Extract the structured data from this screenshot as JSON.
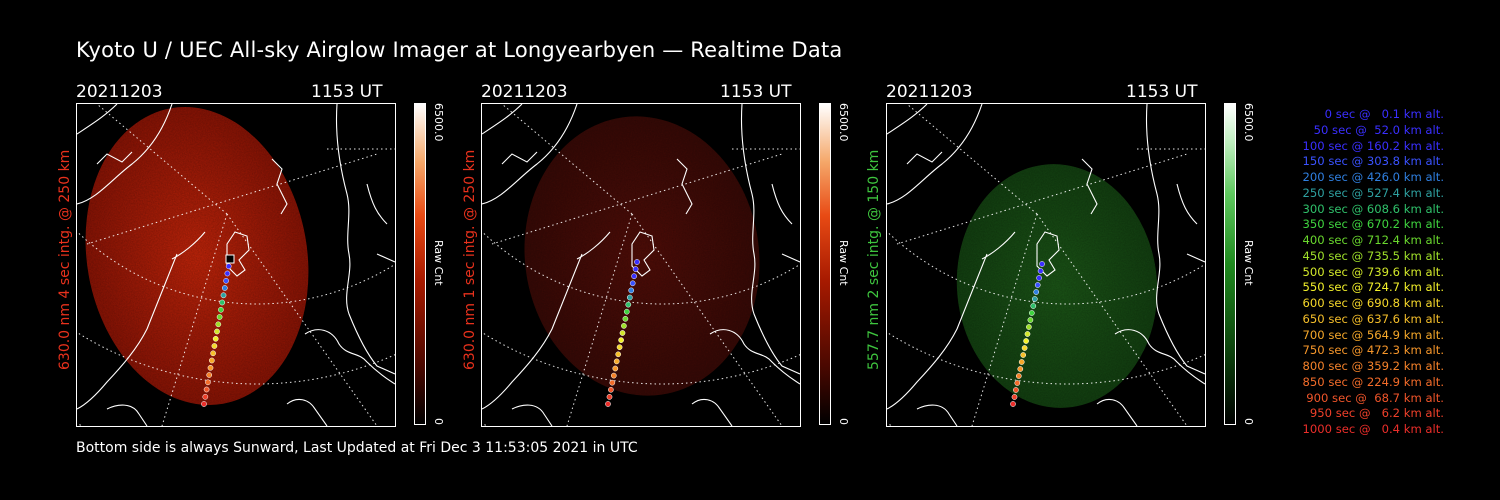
{
  "title": "Kyoto U / UEC All-sky Airglow Imager at Longyearbyen — Realtime Data",
  "footer": "Bottom side is always Sunward, Last Updated at Fri Dec  3 11:53:05 2021 in UTC",
  "panels": [
    {
      "date": "20211203",
      "time": "1153 UT",
      "label": "630.0 nm 4 sec intg. @ 250 km",
      "label_color": "#e8311c",
      "cbar_max": "6500.0",
      "cbar_min": "0",
      "cbar_unit": "Raw Cnt",
      "colormap": "red"
    },
    {
      "date": "20211203",
      "time": "1153 UT",
      "label": "630.0 nm 1 sec intg. @ 250 km",
      "label_color": "#e8311c",
      "cbar_max": "6500.0",
      "cbar_min": "0",
      "cbar_unit": "Raw Cnt",
      "colormap": "red"
    },
    {
      "date": "20211203",
      "time": "1153 UT",
      "label": "557.7 nm 2 sec intg. @ 150 km",
      "label_color": "#3ec43e",
      "cbar_max": "6500.0",
      "cbar_min": "0",
      "cbar_unit": "Raw Cnt",
      "colormap": "green"
    }
  ],
  "legend": [
    {
      "text": "0 sec @   0.1 km alt.",
      "color": "#3a2fff"
    },
    {
      "text": "50 sec @  52.0 km alt.",
      "color": "#3a2fff"
    },
    {
      "text": "100 sec @ 160.2 km alt.",
      "color": "#3a2fff"
    },
    {
      "text": "150 sec @ 303.8 km alt.",
      "color": "#3a52ff"
    },
    {
      "text": "200 sec @ 426.0 km alt.",
      "color": "#2f7fe0"
    },
    {
      "text": "250 sec @ 527.4 km alt.",
      "color": "#2ea0a0"
    },
    {
      "text": "300 sec @ 608.6 km alt.",
      "color": "#2fc06a"
    },
    {
      "text": "350 sec @ 670.2 km alt.",
      "color": "#3fd43f"
    },
    {
      "text": "400 sec @ 712.4 km alt.",
      "color": "#6ad82e"
    },
    {
      "text": "450 sec @ 735.5 km alt.",
      "color": "#9fe02a"
    },
    {
      "text": "500 sec @ 739.6 km alt.",
      "color": "#d2e82a"
    },
    {
      "text": "550 sec @ 724.7 km alt.",
      "color": "#f2f02a"
    },
    {
      "text": "600 sec @ 690.8 km alt.",
      "color": "#f6d82a"
    },
    {
      "text": "650 sec @ 637.6 km alt.",
      "color": "#f6bf2a"
    },
    {
      "text": "700 sec @ 564.9 km alt.",
      "color": "#f6a82a"
    },
    {
      "text": "750 sec @ 472.3 km alt.",
      "color": "#f6962a"
    },
    {
      "text": "800 sec @ 359.2 km alt.",
      "color": "#f5822a"
    },
    {
      "text": "850 sec @ 224.9 km alt.",
      "color": "#f36c2a"
    },
    {
      "text": "900 sec @  68.7 km alt.",
      "color": "#f0552a"
    },
    {
      "text": "950 sec @   6.2 km alt.",
      "color": "#ee402a"
    },
    {
      "text": "1000 sec @   0.4 km alt.",
      "color": "#eb2e2a"
    }
  ]
}
